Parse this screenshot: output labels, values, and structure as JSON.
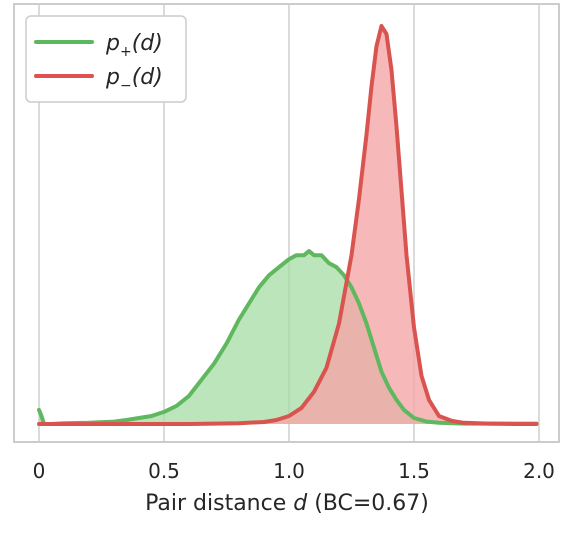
{
  "chart_data": {
    "type": "area",
    "title": "",
    "xlabel": "Pair distance d (BC=0.67)",
    "xlabel_parts": {
      "prefix": "Pair distance ",
      "var": "d",
      "suffix": " (BC=0.67)"
    },
    "ylabel": "",
    "xlim": [
      -0.1,
      2.08
    ],
    "ylim": [
      0,
      1.0
    ],
    "x_ticks": [
      0,
      0.5,
      1.0,
      1.5,
      2.0
    ],
    "x_tick_labels": [
      "0",
      "0.5",
      "1.0",
      "1.5",
      "2.0"
    ],
    "grid": {
      "x": true,
      "y": false
    },
    "legend": {
      "placement": "top-left",
      "entries": [
        {
          "label": "p+(d)",
          "base": "p",
          "sub": "+",
          "arg": "(d)",
          "color": "#5cb85c"
        },
        {
          "label": "p−(d)",
          "base": "p",
          "sub": "−",
          "arg": "(d)",
          "color": "#e05252"
        }
      ]
    },
    "series": [
      {
        "name": "p+(d)",
        "line_color": "#5fb85f",
        "fill_color": "#a6dca6",
        "x": [
          0,
          0.01,
          0.02,
          0.05,
          0.1,
          0.2,
          0.3,
          0.35,
          0.4,
          0.45,
          0.5,
          0.55,
          0.6,
          0.65,
          0.7,
          0.75,
          0.8,
          0.84,
          0.88,
          0.92,
          0.96,
          1.0,
          1.03,
          1.06,
          1.08,
          1.1,
          1.13,
          1.16,
          1.19,
          1.22,
          1.25,
          1.28,
          1.31,
          1.34,
          1.37,
          1.4,
          1.43,
          1.46,
          1.5,
          1.55,
          1.6,
          1.7,
          1.8,
          1.9,
          1.99
        ],
        "y": [
          0.035,
          0.02,
          0.0,
          0.0,
          0.002,
          0.003,
          0.006,
          0.01,
          0.015,
          0.02,
          0.03,
          0.045,
          0.07,
          0.11,
          0.15,
          0.2,
          0.26,
          0.3,
          0.34,
          0.37,
          0.39,
          0.41,
          0.42,
          0.42,
          0.43,
          0.42,
          0.42,
          0.4,
          0.39,
          0.37,
          0.34,
          0.3,
          0.25,
          0.19,
          0.13,
          0.09,
          0.06,
          0.035,
          0.015,
          0.006,
          0.003,
          0.001,
          0.001,
          0.001,
          0.001
        ]
      },
      {
        "name": "p−(d)",
        "line_color": "#d9534f",
        "fill_color": "#f4a6a6",
        "x": [
          0,
          0.2,
          0.4,
          0.6,
          0.8,
          0.9,
          0.95,
          1.0,
          1.05,
          1.1,
          1.15,
          1.2,
          1.25,
          1.28,
          1.31,
          1.33,
          1.35,
          1.37,
          1.39,
          1.41,
          1.43,
          1.45,
          1.47,
          1.5,
          1.53,
          1.56,
          1.6,
          1.65,
          1.7,
          1.8,
          1.9,
          1.99
        ],
        "y": [
          0.0,
          0.0,
          0.0,
          0.0,
          0.002,
          0.005,
          0.01,
          0.02,
          0.04,
          0.08,
          0.14,
          0.25,
          0.42,
          0.56,
          0.72,
          0.84,
          0.94,
          0.99,
          0.97,
          0.88,
          0.74,
          0.58,
          0.42,
          0.24,
          0.12,
          0.06,
          0.02,
          0.008,
          0.003,
          0.001,
          0.0,
          0.0
        ]
      }
    ]
  }
}
